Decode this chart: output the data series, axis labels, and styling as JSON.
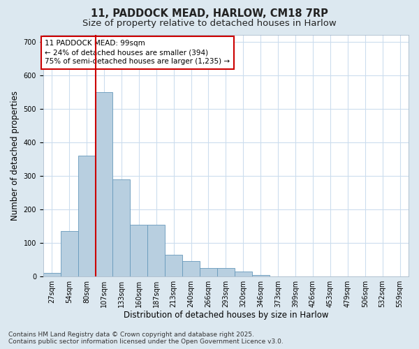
{
  "title_line1": "11, PADDOCK MEAD, HARLOW, CM18 7RP",
  "title_line2": "Size of property relative to detached houses in Harlow",
  "xlabel": "Distribution of detached houses by size in Harlow",
  "ylabel": "Number of detached properties",
  "bar_values": [
    10,
    135,
    360,
    550,
    290,
    155,
    155,
    65,
    45,
    25,
    25,
    15,
    5,
    0,
    0,
    0,
    0,
    0,
    0,
    0,
    0
  ],
  "bin_labels": [
    "27sqm",
    "54sqm",
    "80sqm",
    "107sqm",
    "133sqm",
    "160sqm",
    "187sqm",
    "213sqm",
    "240sqm",
    "266sqm",
    "293sqm",
    "320sqm",
    "346sqm",
    "373sqm",
    "399sqm",
    "426sqm",
    "453sqm",
    "479sqm",
    "506sqm",
    "532sqm",
    "559sqm"
  ],
  "bar_color": "#b8cfe0",
  "bar_edge_color": "#6699bb",
  "plot_bg_color": "#ffffff",
  "fig_bg_color": "#dce8f0",
  "grid_color": "#ccddee",
  "vline_color": "#cc0000",
  "annotation_box": {
    "text_line1": "11 PADDOCK MEAD: 99sqm",
    "text_line2": "← 24% of detached houses are smaller (394)",
    "text_line3": "75% of semi-detached houses are larger (1,235) →"
  },
  "ylim": [
    0,
    720
  ],
  "yticks": [
    0,
    100,
    200,
    300,
    400,
    500,
    600,
    700
  ],
  "footer_line1": "Contains HM Land Registry data © Crown copyright and database right 2025.",
  "footer_line2": "Contains public sector information licensed under the Open Government Licence v3.0.",
  "title_fontsize": 10.5,
  "subtitle_fontsize": 9.5,
  "axis_label_fontsize": 8.5,
  "tick_fontsize": 7,
  "footer_fontsize": 6.5,
  "annotation_fontsize": 7.5,
  "vline_x_index": 2.5
}
